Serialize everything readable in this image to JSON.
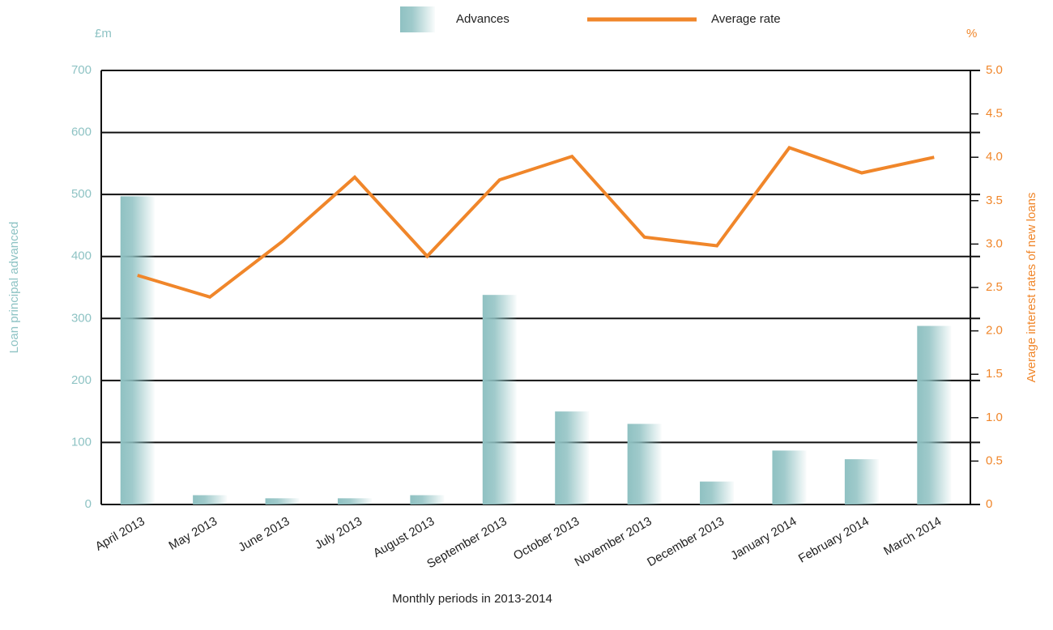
{
  "chart_data": {
    "type": "bar_line",
    "y_unit": "£m",
    "y2_unit": "%",
    "ylabel": "Loan principal advanced",
    "y2label": "Average interest rates of new loans",
    "xlabel": "Monthly periods in 2013-2014",
    "categories": [
      "April 2013",
      "May 2013",
      "June 2013",
      "July 2013",
      "August 2013",
      "September 2013",
      "October 2013",
      "November 2013",
      "December 2013",
      "January 2014",
      "February 2014",
      "March 2014"
    ],
    "series": [
      {
        "name": "Advances",
        "type": "bar",
        "color": "#8fc1c2",
        "values": [
          497,
          15,
          10,
          10,
          15,
          338,
          150,
          130,
          37,
          87,
          73,
          288
        ]
      },
      {
        "name": "Average rate",
        "type": "line",
        "axis": "y2",
        "color": "#f0862a",
        "values": [
          2.64,
          2.39,
          3.03,
          3.77,
          2.86,
          3.74,
          4.01,
          3.08,
          2.98,
          4.11,
          3.82,
          4.0
        ]
      }
    ],
    "ylim": [
      0,
      700
    ],
    "yticks": [
      0,
      100,
      200,
      300,
      400,
      500,
      600,
      700
    ],
    "y2lim": [
      0,
      5
    ],
    "y2ticks": [
      0,
      0.5,
      {
        "value": 1,
        "label": "1.0"
      },
      1.5,
      {
        "value": 2,
        "label": "2.0"
      },
      2.5,
      {
        "value": 3,
        "label": "3.0"
      },
      3.5,
      {
        "value": 4,
        "label": "4.0"
      },
      4.5,
      {
        "value": 5,
        "label": "5.0"
      }
    ],
    "grid": true
  }
}
